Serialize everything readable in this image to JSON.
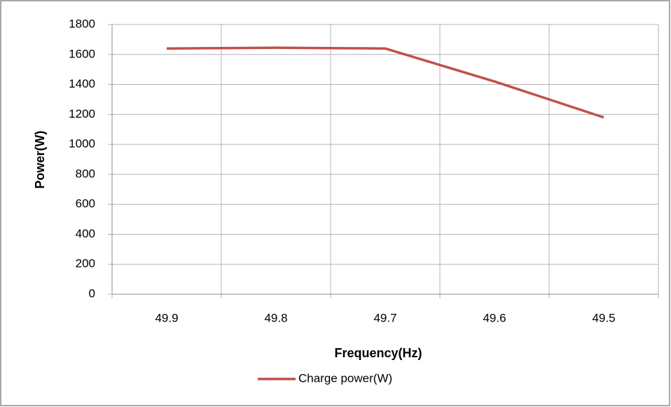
{
  "chart_data": {
    "type": "line",
    "xlabel": "Frequency(Hz)",
    "ylabel": "Power(W)",
    "categories": [
      "49.9",
      "49.8",
      "49.7",
      "49.6",
      "49.5"
    ],
    "series": [
      {
        "name": "Charge power(W)",
        "color": "#c0504d",
        "values": [
          1640,
          1645,
          1640,
          1420,
          1180
        ]
      }
    ],
    "ylim": [
      0,
      1800
    ],
    "yticks": [
      0,
      200,
      400,
      600,
      800,
      1000,
      1200,
      1400,
      1600,
      1800
    ],
    "grid": true,
    "legend": "bottom"
  }
}
